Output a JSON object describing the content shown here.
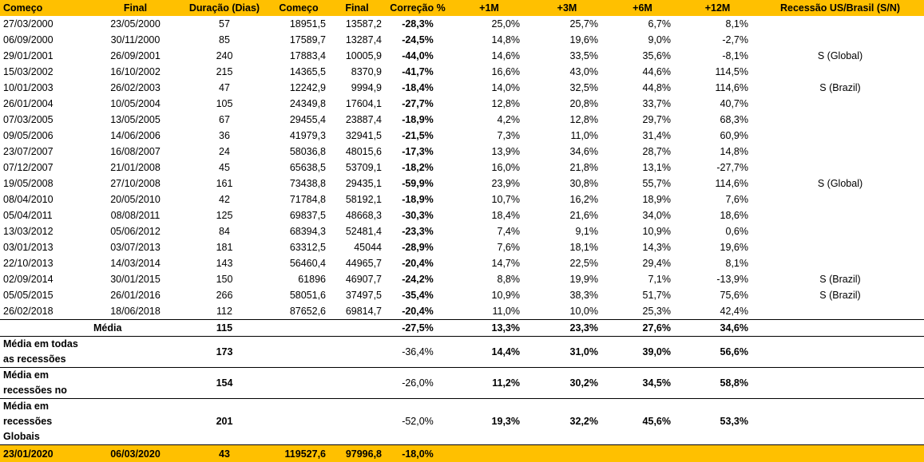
{
  "headers": [
    "Começo",
    "Final",
    "Duração (Dias)",
    "Começo",
    "Final",
    "Correção %",
    "+1M",
    "+3M",
    "+6M",
    "+12M",
    "Recessão US/Brasil (S/N)"
  ],
  "rows": [
    [
      "27/03/2000",
      "23/05/2000",
      "57",
      "18951,5",
      "13587,2",
      "-28,3%",
      "25,0%",
      "25,7%",
      "6,7%",
      "8,1%",
      ""
    ],
    [
      "06/09/2000",
      "30/11/2000",
      "85",
      "17589,7",
      "13287,4",
      "-24,5%",
      "14,8%",
      "19,6%",
      "9,0%",
      "-2,7%",
      ""
    ],
    [
      "29/01/2001",
      "26/09/2001",
      "240",
      "17883,4",
      "10005,9",
      "-44,0%",
      "14,6%",
      "33,5%",
      "35,6%",
      "-8,1%",
      "S (Global)"
    ],
    [
      "15/03/2002",
      "16/10/2002",
      "215",
      "14365,5",
      "8370,9",
      "-41,7%",
      "16,6%",
      "43,0%",
      "44,6%",
      "114,5%",
      ""
    ],
    [
      "10/01/2003",
      "26/02/2003",
      "47",
      "12242,9",
      "9994,9",
      "-18,4%",
      "14,0%",
      "32,5%",
      "44,8%",
      "114,6%",
      "S (Brazil)"
    ],
    [
      "26/01/2004",
      "10/05/2004",
      "105",
      "24349,8",
      "17604,1",
      "-27,7%",
      "12,8%",
      "20,8%",
      "33,7%",
      "40,7%",
      ""
    ],
    [
      "07/03/2005",
      "13/05/2005",
      "67",
      "29455,4",
      "23887,4",
      "-18,9%",
      "4,2%",
      "12,8%",
      "29,7%",
      "68,3%",
      ""
    ],
    [
      "09/05/2006",
      "14/06/2006",
      "36",
      "41979,3",
      "32941,5",
      "-21,5%",
      "7,3%",
      "11,0%",
      "31,4%",
      "60,9%",
      ""
    ],
    [
      "23/07/2007",
      "16/08/2007",
      "24",
      "58036,8",
      "48015,6",
      "-17,3%",
      "13,9%",
      "34,6%",
      "28,7%",
      "14,8%",
      ""
    ],
    [
      "07/12/2007",
      "21/01/2008",
      "45",
      "65638,5",
      "53709,1",
      "-18,2%",
      "16,0%",
      "21,8%",
      "13,1%",
      "-27,7%",
      ""
    ],
    [
      "19/05/2008",
      "27/10/2008",
      "161",
      "73438,8",
      "29435,1",
      "-59,9%",
      "23,9%",
      "30,8%",
      "55,7%",
      "114,6%",
      "S (Global)"
    ],
    [
      "08/04/2010",
      "20/05/2010",
      "42",
      "71784,8",
      "58192,1",
      "-18,9%",
      "10,7%",
      "16,2%",
      "18,9%",
      "7,6%",
      ""
    ],
    [
      "05/04/2011",
      "08/08/2011",
      "125",
      "69837,5",
      "48668,3",
      "-30,3%",
      "18,4%",
      "21,6%",
      "34,0%",
      "18,6%",
      ""
    ],
    [
      "13/03/2012",
      "05/06/2012",
      "84",
      "68394,3",
      "52481,4",
      "-23,3%",
      "7,4%",
      "9,1%",
      "10,9%",
      "0,6%",
      ""
    ],
    [
      "03/01/2013",
      "03/07/2013",
      "181",
      "63312,5",
      "45044",
      "-28,9%",
      "7,6%",
      "18,1%",
      "14,3%",
      "19,6%",
      ""
    ],
    [
      "22/10/2013",
      "14/03/2014",
      "143",
      "56460,4",
      "44965,7",
      "-20,4%",
      "14,7%",
      "22,5%",
      "29,4%",
      "8,1%",
      ""
    ],
    [
      "02/09/2014",
      "30/01/2015",
      "150",
      "61896",
      "46907,7",
      "-24,2%",
      "8,8%",
      "19,9%",
      "7,1%",
      "-13,9%",
      "S (Brazil)"
    ],
    [
      "05/05/2015",
      "26/01/2016",
      "266",
      "58051,6",
      "37497,5",
      "-35,4%",
      "10,9%",
      "38,3%",
      "51,7%",
      "75,6%",
      "S (Brazil)"
    ],
    [
      "26/02/2018",
      "18/06/2018",
      "112",
      "87652,6",
      "69814,7",
      "-20,4%",
      "11,0%",
      "10,0%",
      "25,3%",
      "42,4%",
      ""
    ]
  ],
  "media": {
    "label": "Média",
    "duracao": "115",
    "correcao": "-27,5%",
    "m1": "13,3%",
    "m3": "23,3%",
    "m6": "27,6%",
    "m12": "34,6%"
  },
  "summaries": [
    {
      "label": "Média em todas as recessões",
      "duracao": "173",
      "correcao": "-36,4%",
      "m1": "14,4%",
      "m3": "31,0%",
      "m6": "39,0%",
      "m12": "56,6%"
    },
    {
      "label": "Média em recessões no",
      "duracao": "154",
      "correcao": "-26,0%",
      "m1": "11,2%",
      "m3": "30,2%",
      "m6": "34,5%",
      "m12": "58,8%"
    },
    {
      "label": "Média em recessões Globais",
      "duracao": "201",
      "correcao": "-52,0%",
      "m1": "19,3%",
      "m3": "32,2%",
      "m6": "45,6%",
      "m12": "53,3%"
    }
  ],
  "current": {
    "inicio": "23/01/2020",
    "fim": "06/03/2020",
    "duracao": "43",
    "comeco": "119527,6",
    "final": "97996,8",
    "correcao": "-18,0%"
  },
  "colors": {
    "header_bg": "#ffc000"
  }
}
